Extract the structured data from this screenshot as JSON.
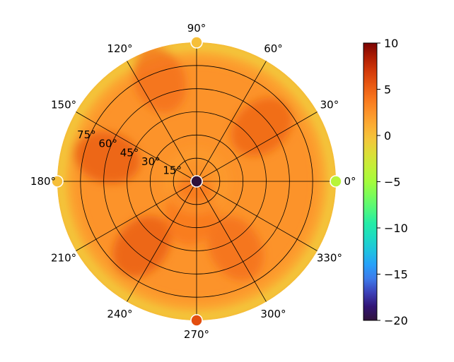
{
  "chart_data": {
    "type": "heatmap",
    "projection": "polar",
    "angle_ticks": [
      {
        "value": 0,
        "label": "0°"
      },
      {
        "value": 30,
        "label": "30°"
      },
      {
        "value": 60,
        "label": "60°"
      },
      {
        "value": 90,
        "label": "90°"
      },
      {
        "value": 120,
        "label": "120°"
      },
      {
        "value": 150,
        "label": "150°"
      },
      {
        "value": 180,
        "label": "180°"
      },
      {
        "value": 210,
        "label": "210°"
      },
      {
        "value": 240,
        "label": "240°"
      },
      {
        "value": 270,
        "label": "270°"
      },
      {
        "value": 300,
        "label": "300°"
      },
      {
        "value": 330,
        "label": "330°"
      }
    ],
    "radial_ticks": [
      {
        "value": 15,
        "label": "15°"
      },
      {
        "value": 30,
        "label": "30°"
      },
      {
        "value": 45,
        "label": "45°"
      },
      {
        "value": 60,
        "label": "60°"
      },
      {
        "value": 75,
        "label": "75°"
      }
    ],
    "rlim": [
      0,
      90
    ],
    "grid": true,
    "colorbar": {
      "colormap": "turbo",
      "vmin": -20,
      "vmax": 10,
      "ticks": [
        {
          "value": 10,
          "label": "10"
        },
        {
          "value": 5,
          "label": "5"
        },
        {
          "value": 0,
          "label": "0"
        },
        {
          "value": -5,
          "label": "−5"
        },
        {
          "value": -10,
          "label": "−10"
        },
        {
          "value": -15,
          "label": "−15"
        },
        {
          "value": -20,
          "label": "−20"
        }
      ]
    },
    "field": {
      "description_values": "approximate gain pattern: ~0 at rim, 2-5 in interior with lobes",
      "lobes": [
        {
          "theta": 165,
          "r": 60,
          "value": 5.5
        },
        {
          "theta": 230,
          "r": 55,
          "value": 5.5
        },
        {
          "theta": 40,
          "r": 55,
          "value": 5
        },
        {
          "theta": 110,
          "r": 70,
          "value": 4.5
        },
        {
          "theta": 300,
          "r": 50,
          "value": 4.5
        },
        {
          "theta": 260,
          "r": 20,
          "value": 4
        }
      ],
      "base_value": 2.5,
      "rim_value": -0.5
    },
    "markers": [
      {
        "theta": 0,
        "r": 0,
        "value": -20
      },
      {
        "theta": 0,
        "r": 90,
        "value": -4
      },
      {
        "theta": 90,
        "r": 90,
        "value": 0
      },
      {
        "theta": 180,
        "r": 90,
        "value": 0
      },
      {
        "theta": 270,
        "r": 90,
        "value": 6
      }
    ]
  }
}
